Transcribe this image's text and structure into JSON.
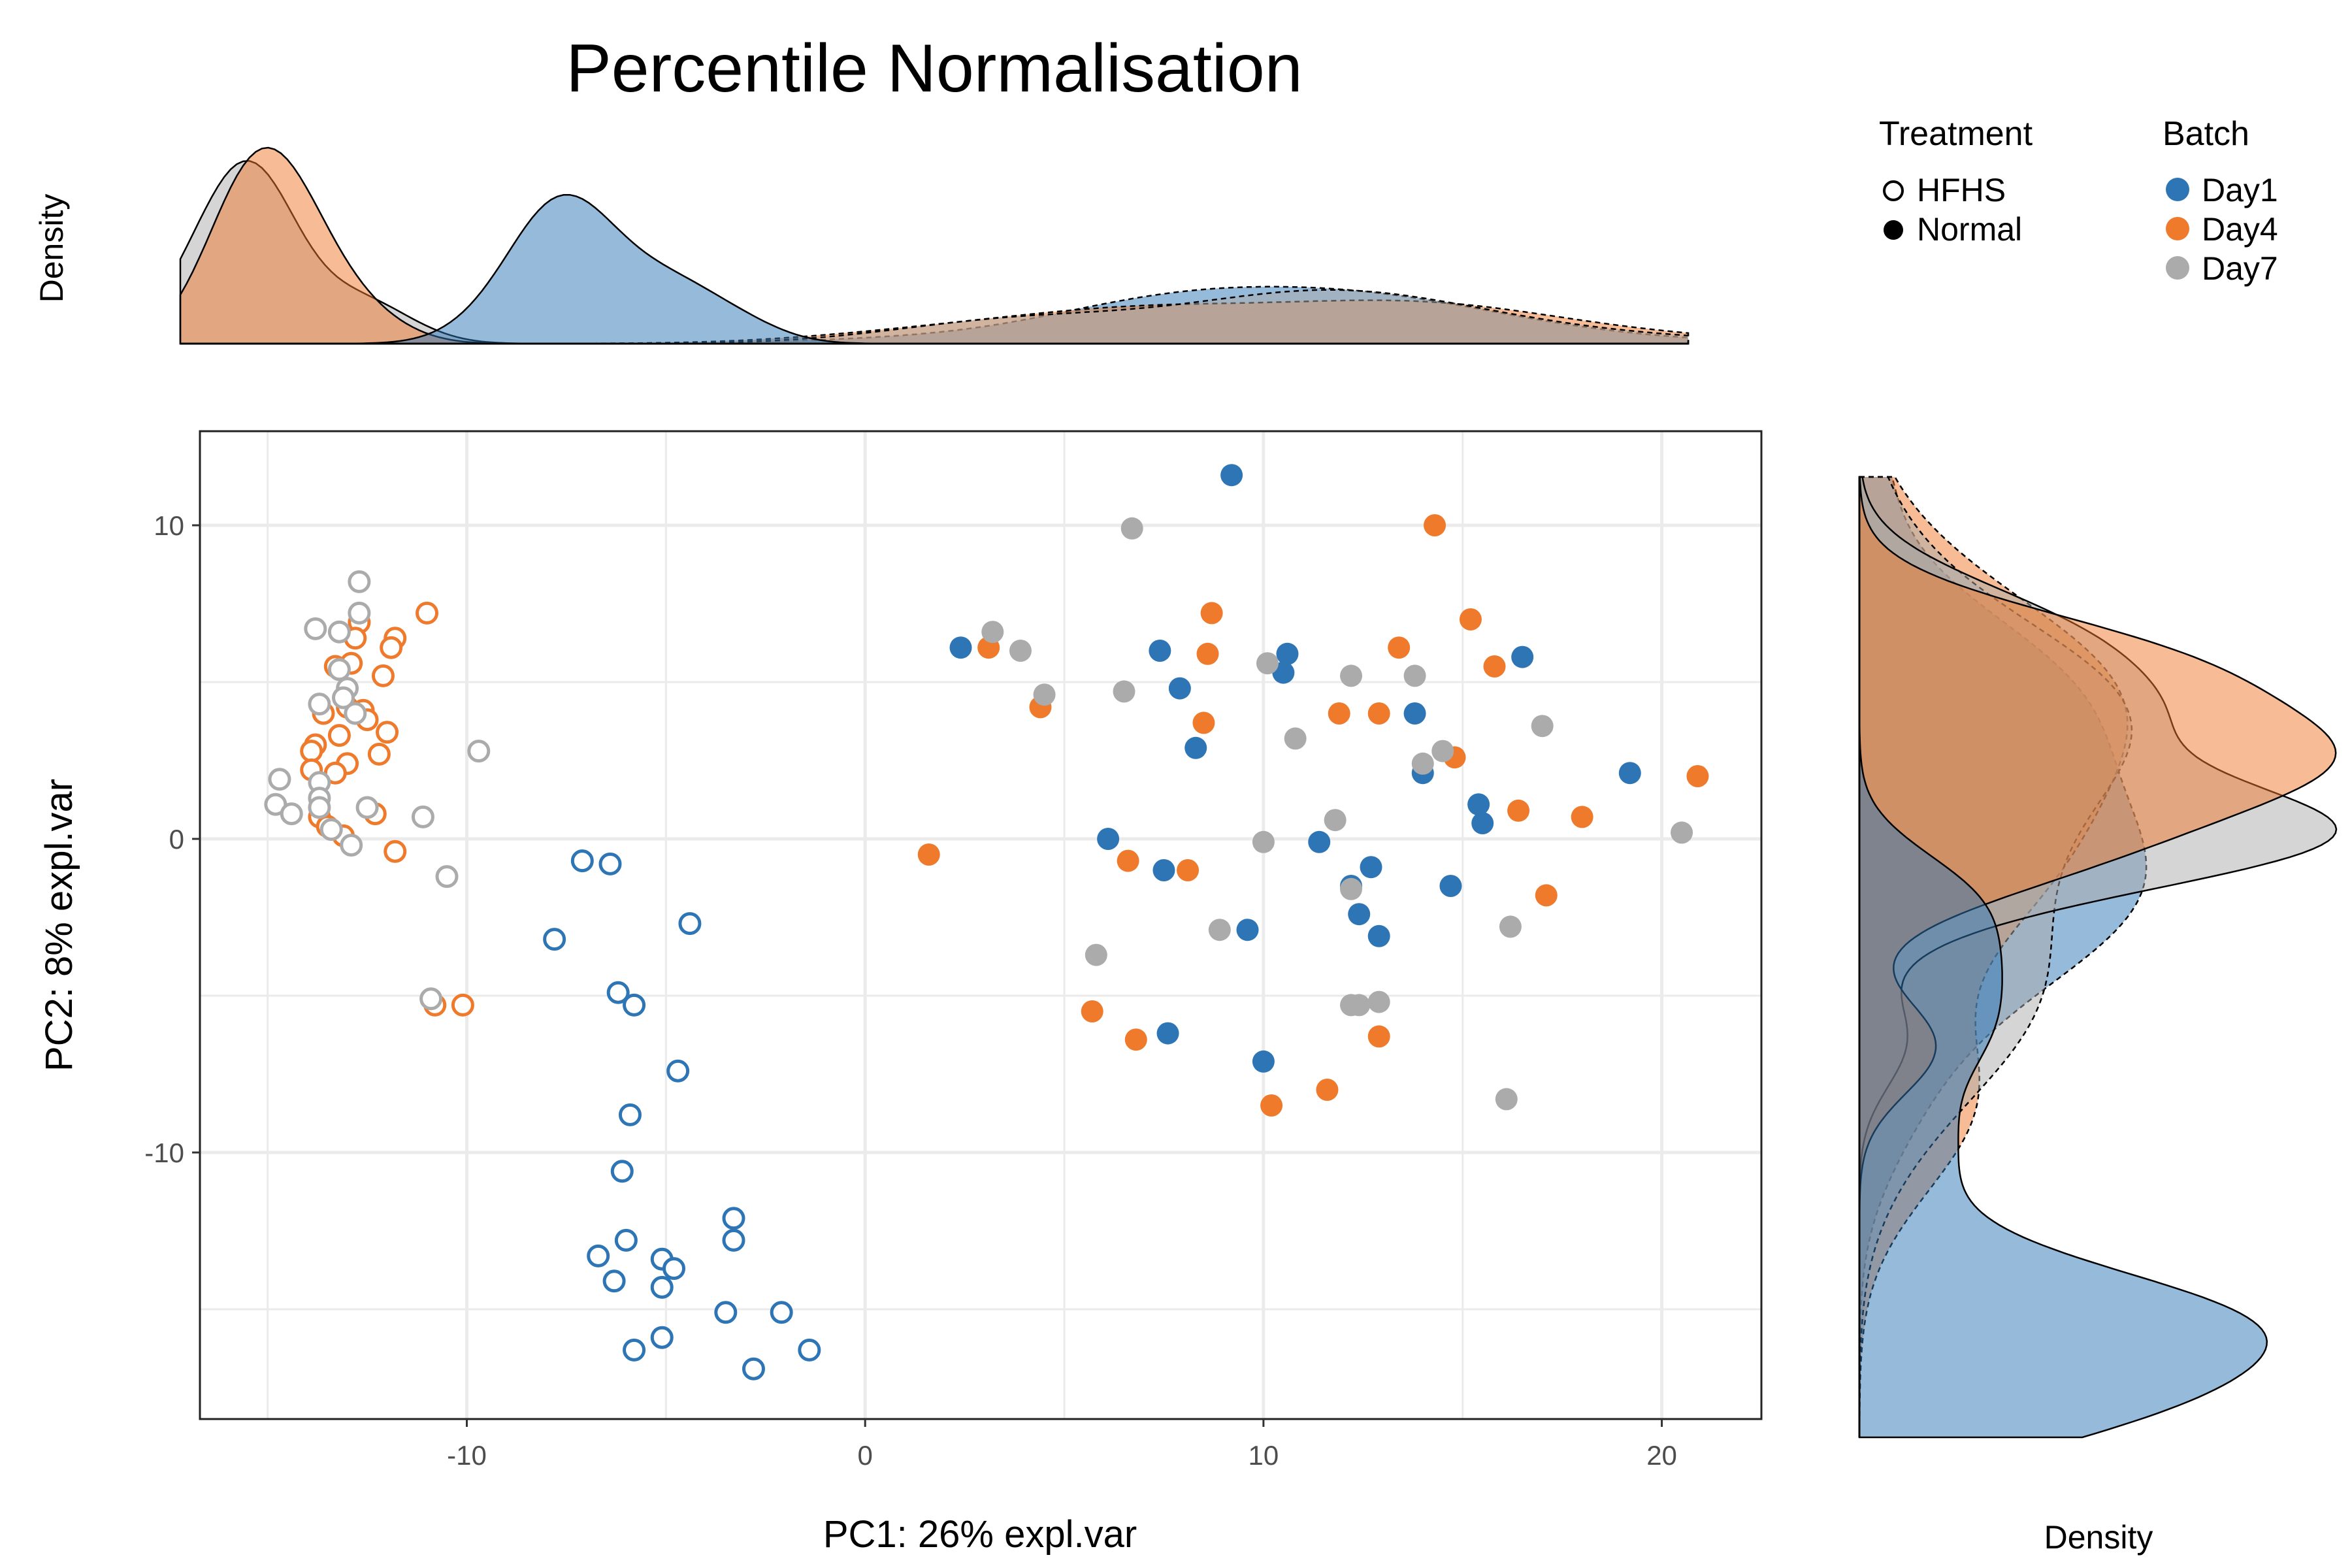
{
  "chart_data": {
    "type": "scatter",
    "title": "Percentile Normalisation",
    "xlabel": "PC1: 26% expl.var",
    "ylabel": "PC2: 8% expl.var",
    "xlim": [
      -16.7,
      22.5
    ],
    "ylim": [
      -18.5,
      13.0
    ],
    "xticks": [
      -10,
      0,
      10,
      20
    ],
    "yticks": [
      10,
      0,
      -10
    ],
    "grid": true,
    "marginal_label_top": "Density",
    "marginal_label_right": "Density",
    "colors": {
      "Day1": "#2e75b6",
      "Day4": "#ef7a2c",
      "Day7": "#ababab"
    },
    "legend": {
      "treatment_title": "Treatment",
      "treatment_items": [
        {
          "label": "HFHS",
          "shape": "open-circle"
        },
        {
          "label": "Normal",
          "shape": "filled-circle"
        }
      ],
      "batch_title": "Batch",
      "batch_items": [
        {
          "label": "Day1",
          "color": "#2e75b6"
        },
        {
          "label": "Day4",
          "color": "#ef7a2c"
        },
        {
          "label": "Day7",
          "color": "#ababab"
        }
      ],
      "position": "top-right"
    },
    "series": [
      {
        "batch": "Day1",
        "treatment": "HFHS",
        "points": [
          [
            -7.1,
            -0.7
          ],
          [
            -6.4,
            -0.8
          ],
          [
            -7.8,
            -3.2
          ],
          [
            -4.4,
            -2.7
          ],
          [
            -6.2,
            -4.9
          ],
          [
            -5.8,
            -5.3
          ],
          [
            -4.7,
            -7.4
          ],
          [
            -5.9,
            -8.8
          ],
          [
            -6.1,
            -10.6
          ],
          [
            -3.3,
            -12.1
          ],
          [
            -3.3,
            -12.8
          ],
          [
            -6.0,
            -12.8
          ],
          [
            -6.7,
            -13.3
          ],
          [
            -5.1,
            -13.4
          ],
          [
            -4.8,
            -13.7
          ],
          [
            -6.3,
            -14.1
          ],
          [
            -5.1,
            -14.3
          ],
          [
            -3.5,
            -15.1
          ],
          [
            -2.1,
            -15.1
          ],
          [
            -5.1,
            -15.9
          ],
          [
            -5.8,
            -16.3
          ],
          [
            -1.4,
            -16.3
          ],
          [
            -2.8,
            -16.9
          ]
        ]
      },
      {
        "batch": "Day4",
        "treatment": "HFHS",
        "points": [
          [
            -11.0,
            7.2
          ],
          [
            -12.7,
            6.9
          ],
          [
            -11.8,
            6.4
          ],
          [
            -12.8,
            6.4
          ],
          [
            -11.9,
            6.1
          ],
          [
            -12.9,
            5.6
          ],
          [
            -13.3,
            5.5
          ],
          [
            -12.1,
            5.2
          ],
          [
            -13.0,
            4.2
          ],
          [
            -12.6,
            4.1
          ],
          [
            -13.6,
            4.0
          ],
          [
            -12.5,
            3.8
          ],
          [
            -12.0,
            3.4
          ],
          [
            -13.2,
            3.3
          ],
          [
            -13.8,
            3.0
          ],
          [
            -13.9,
            2.8
          ],
          [
            -12.2,
            2.7
          ],
          [
            -13.0,
            2.4
          ],
          [
            -13.9,
            2.2
          ],
          [
            -13.3,
            2.1
          ],
          [
            -12.3,
            0.8
          ],
          [
            -13.7,
            0.7
          ],
          [
            -13.5,
            0.4
          ],
          [
            -13.1,
            0.1
          ],
          [
            -11.8,
            -0.4
          ],
          [
            -10.1,
            -5.3
          ],
          [
            -10.8,
            -5.3
          ]
        ]
      },
      {
        "batch": "Day7",
        "treatment": "HFHS",
        "points": [
          [
            -12.7,
            8.2
          ],
          [
            -12.7,
            7.2
          ],
          [
            -13.8,
            6.7
          ],
          [
            -13.2,
            6.6
          ],
          [
            -13.2,
            5.4
          ],
          [
            -13.0,
            4.8
          ],
          [
            -13.1,
            4.5
          ],
          [
            -13.7,
            4.3
          ],
          [
            -12.8,
            4.0
          ],
          [
            -9.7,
            2.8
          ],
          [
            -14.7,
            1.9
          ],
          [
            -13.7,
            1.8
          ],
          [
            -13.7,
            1.3
          ],
          [
            -14.8,
            1.1
          ],
          [
            -13.7,
            1.0
          ],
          [
            -12.5,
            1.0
          ],
          [
            -14.4,
            0.8
          ],
          [
            -11.1,
            0.7
          ],
          [
            -13.4,
            0.3
          ],
          [
            -12.9,
            -0.2
          ],
          [
            -10.5,
            -1.2
          ],
          [
            -10.9,
            -5.1
          ]
        ]
      },
      {
        "batch": "Day1",
        "treatment": "Normal",
        "points": [
          [
            9.2,
            11.6
          ],
          [
            2.4,
            6.1
          ],
          [
            7.4,
            6.0
          ],
          [
            10.6,
            5.9
          ],
          [
            16.5,
            5.8
          ],
          [
            10.5,
            5.3
          ],
          [
            7.9,
            4.8
          ],
          [
            13.8,
            4.0
          ],
          [
            8.3,
            2.9
          ],
          [
            14.0,
            2.1
          ],
          [
            19.2,
            2.1
          ],
          [
            15.4,
            1.1
          ],
          [
            15.5,
            0.5
          ],
          [
            6.1,
            0.0
          ],
          [
            11.4,
            -0.1
          ],
          [
            7.5,
            -1.0
          ],
          [
            12.7,
            -0.9
          ],
          [
            12.2,
            -1.5
          ],
          [
            14.7,
            -1.5
          ],
          [
            12.4,
            -2.4
          ],
          [
            9.6,
            -2.9
          ],
          [
            12.9,
            -3.1
          ],
          [
            7.6,
            -6.2
          ],
          [
            10.0,
            -7.1
          ]
        ]
      },
      {
        "batch": "Day4",
        "treatment": "Normal",
        "points": [
          [
            14.3,
            10.0
          ],
          [
            8.7,
            7.2
          ],
          [
            15.2,
            7.0
          ],
          [
            3.1,
            6.1
          ],
          [
            13.4,
            6.1
          ],
          [
            8.6,
            5.9
          ],
          [
            15.8,
            5.5
          ],
          [
            4.4,
            4.2
          ],
          [
            11.9,
            4.0
          ],
          [
            12.9,
            4.0
          ],
          [
            8.5,
            3.7
          ],
          [
            14.8,
            2.6
          ],
          [
            20.9,
            2.0
          ],
          [
            16.4,
            0.9
          ],
          [
            18.0,
            0.7
          ],
          [
            1.6,
            -0.5
          ],
          [
            6.6,
            -0.7
          ],
          [
            8.1,
            -1.0
          ],
          [
            17.1,
            -1.8
          ],
          [
            5.7,
            -5.5
          ],
          [
            12.9,
            -6.3
          ],
          [
            6.8,
            -6.4
          ],
          [
            11.6,
            -8.0
          ],
          [
            10.2,
            -8.5
          ]
        ]
      },
      {
        "batch": "Day7",
        "treatment": "Normal",
        "points": [
          [
            6.7,
            9.9
          ],
          [
            3.2,
            6.6
          ],
          [
            3.9,
            6.0
          ],
          [
            10.1,
            5.6
          ],
          [
            12.2,
            5.2
          ],
          [
            13.8,
            5.2
          ],
          [
            4.5,
            4.6
          ],
          [
            6.5,
            4.7
          ],
          [
            17.0,
            3.6
          ],
          [
            10.8,
            3.2
          ],
          [
            14.5,
            2.8
          ],
          [
            14.0,
            2.4
          ],
          [
            11.8,
            0.6
          ],
          [
            20.5,
            0.2
          ],
          [
            10.0,
            -0.1
          ],
          [
            12.2,
            -1.6
          ],
          [
            16.2,
            -2.8
          ],
          [
            8.9,
            -2.9
          ],
          [
            5.8,
            -3.7
          ],
          [
            12.9,
            -5.2
          ],
          [
            12.4,
            -5.3
          ],
          [
            12.2,
            -5.3
          ],
          [
            16.1,
            -8.3
          ]
        ]
      }
    ]
  }
}
